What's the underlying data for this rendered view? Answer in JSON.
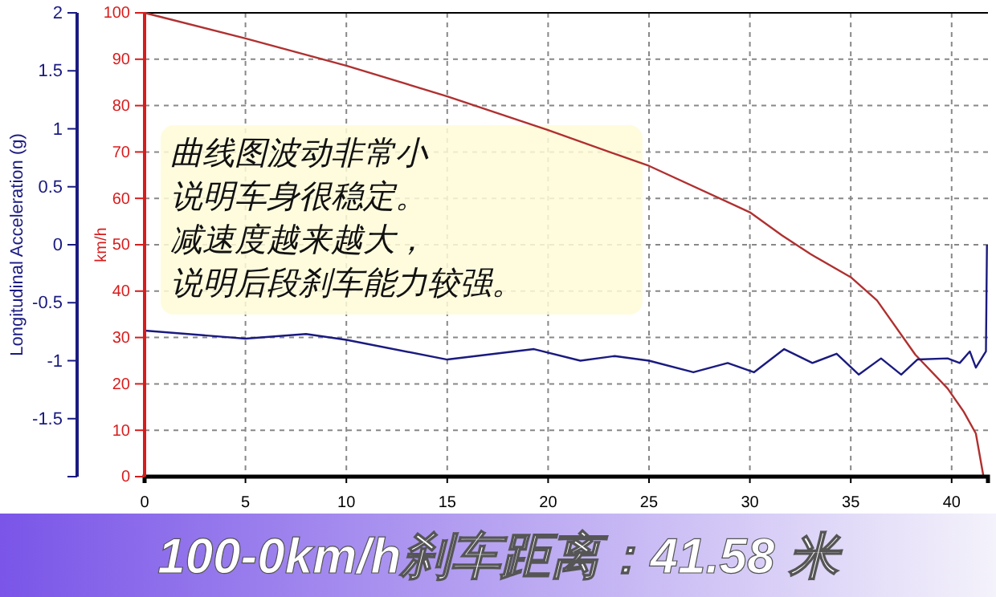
{
  "chart_data": {
    "type": "line",
    "title": "100-0km/h刹车距离：41.58 米",
    "ylabel": "km/h",
    "y2label": "Longitudinal Acceleration (g)",
    "annotations": [
      "曲线图波动非常小",
      "说明车身很稳定。",
      "减速度越来越大，",
      "说明后段刹车能力较强。"
    ],
    "xlim": [
      0,
      41.8
    ],
    "xticks": [
      0,
      5,
      10,
      15,
      20,
      25,
      30,
      35,
      40
    ],
    "ylim": [
      0,
      100
    ],
    "yticks": [
      0,
      10,
      20,
      30,
      40,
      50,
      60,
      70,
      80,
      90,
      100
    ],
    "y2lim": [
      -2,
      2
    ],
    "y2ticks": [
      {
        "value": -2,
        "label": null
      },
      -1.5,
      -1,
      -0.5,
      0,
      0.5,
      1,
      1.5,
      2
    ],
    "grid": true,
    "marker": "none",
    "line_style": "solid",
    "series": [
      {
        "color": "#b03030",
        "x": [
          0,
          5,
          10,
          15,
          20,
          25,
          30,
          31.6,
          33,
          35,
          36.3,
          38.2,
          39.8,
          40.6,
          41.2,
          41.58
        ],
        "values": [
          100,
          94.5,
          88.6,
          82,
          74.7,
          67,
          57,
          52,
          48,
          43,
          38,
          26.3,
          19,
          14,
          9.3,
          0
        ]
      },
      {
        "color": "#1a1a80",
        "axis": "y2",
        "x": [
          0,
          5,
          8,
          10,
          15,
          19.3,
          21.6,
          23.3,
          25,
          27.2,
          28.9,
          30.2,
          31.7,
          33.1,
          34.3,
          35.4,
          36.5,
          37.5,
          38.3,
          39.8,
          40.4,
          40.9,
          41.2,
          41.7,
          41.75
        ],
        "values": [
          -0.74,
          -0.81,
          -0.77,
          -0.82,
          -0.99,
          -0.9,
          -1.0,
          -0.96,
          -1.0,
          -1.1,
          -1.02,
          -1.1,
          -0.9,
          -1.02,
          -0.94,
          -1.12,
          -0.98,
          -1.12,
          -0.99,
          -0.98,
          -1.02,
          -0.92,
          -1.06,
          -0.92,
          0
        ]
      }
    ]
  }
}
